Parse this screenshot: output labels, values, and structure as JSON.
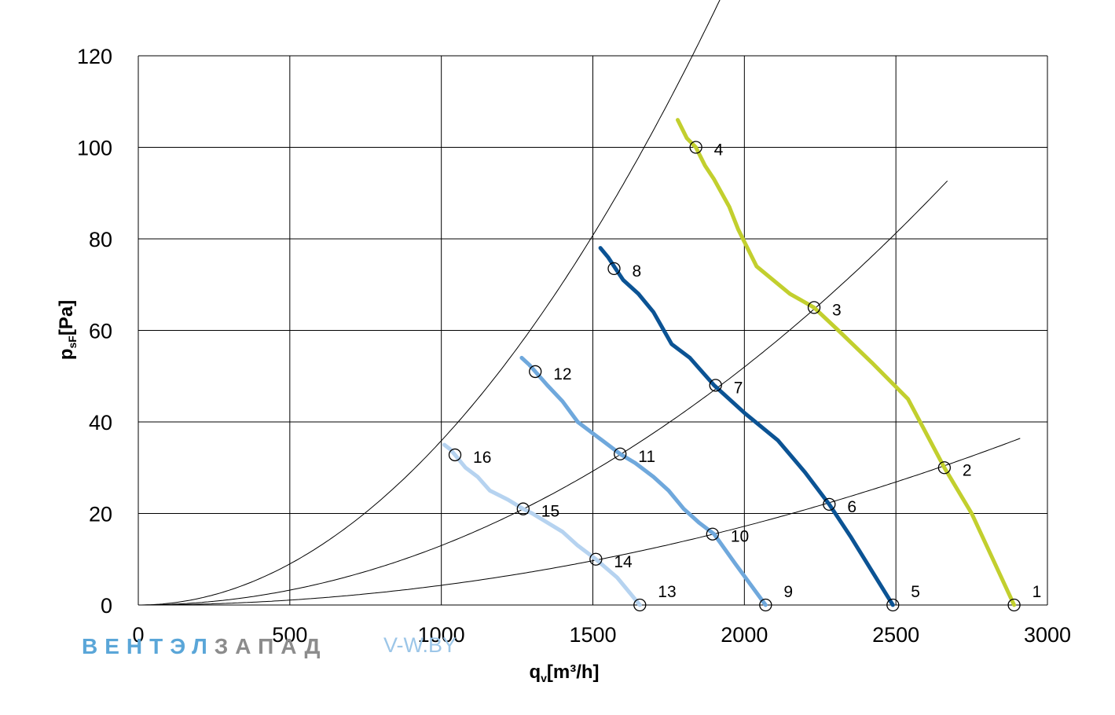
{
  "chart_data": {
    "type": "line",
    "xlabel": "q",
    "xlabel_sub": "v",
    "xlabel_unit": "[m³/h]",
    "ylabel": "p",
    "ylabel_sub": "sF",
    "ylabel_unit": "[Pa]",
    "xlim": [
      0,
      3000
    ],
    "ylim": [
      0,
      120
    ],
    "x_ticks": [
      0,
      500,
      1000,
      1500,
      2000,
      2500,
      3000
    ],
    "y_ticks": [
      0,
      20,
      40,
      60,
      80,
      100,
      120
    ],
    "grid": true,
    "series": [
      {
        "color": "#c2cf2e",
        "x": [
          1780,
          1810,
          1840,
          1870,
          1900,
          1950,
          1980,
          2040,
          2150,
          2230,
          2310,
          2420,
          2540,
          2660,
          2750,
          2890
        ],
        "y": [
          106,
          102,
          100,
          96,
          93,
          87,
          82,
          74,
          68,
          65,
          60,
          53,
          45,
          30,
          20,
          0
        ]
      },
      {
        "color": "#0b5394",
        "x": [
          1525,
          1550,
          1575,
          1600,
          1650,
          1700,
          1760,
          1820,
          1900,
          2000,
          2110,
          2200,
          2280,
          2350,
          2490
        ],
        "y": [
          78,
          76,
          73.5,
          71,
          68,
          64,
          57,
          54,
          48,
          42,
          36,
          29,
          22,
          15,
          0
        ]
      },
      {
        "color": "#6fa8dc",
        "x": [
          1265,
          1290,
          1310,
          1350,
          1400,
          1450,
          1530,
          1590,
          1640,
          1700,
          1750,
          1800,
          1850,
          1900,
          1970,
          2070
        ],
        "y": [
          54,
          52.5,
          51,
          48,
          44.5,
          40,
          36,
          33,
          31,
          28,
          25,
          21,
          18,
          15.5,
          9,
          0
        ]
      },
      {
        "color": "#b6d3f0",
        "x": [
          1010,
          1030,
          1045,
          1080,
          1120,
          1160,
          1220,
          1270,
          1300,
          1350,
          1400,
          1450,
          1510,
          1580,
          1655
        ],
        "y": [
          35,
          34,
          32.8,
          30,
          28,
          25,
          23,
          21,
          20,
          18,
          16,
          13,
          10,
          6,
          0
        ]
      }
    ],
    "system_curves": [
      {
        "k": 3.59e-05,
        "x_max": 2015
      },
      {
        "k": 1.3e-05,
        "x_max": 2670
      },
      {
        "k": 4.3e-06,
        "x_max": 2910
      }
    ],
    "points": [
      {
        "label": "1",
        "x": 2890,
        "y": 0
      },
      {
        "label": "2",
        "x": 2660,
        "y": 30
      },
      {
        "label": "3",
        "x": 2230,
        "y": 65
      },
      {
        "label": "4",
        "x": 1840,
        "y": 100
      },
      {
        "label": "5",
        "x": 2490,
        "y": 0
      },
      {
        "label": "6",
        "x": 2280,
        "y": 22
      },
      {
        "label": "7",
        "x": 1905,
        "y": 48
      },
      {
        "label": "8",
        "x": 1570,
        "y": 73.5
      },
      {
        "label": "9",
        "x": 2070,
        "y": 0
      },
      {
        "label": "10",
        "x": 1895,
        "y": 15.5
      },
      {
        "label": "11",
        "x": 1590,
        "y": 33
      },
      {
        "label": "12",
        "x": 1310,
        "y": 51
      },
      {
        "label": "13",
        "x": 1655,
        "y": 0
      },
      {
        "label": "14",
        "x": 1510,
        "y": 10
      },
      {
        "label": "15",
        "x": 1270,
        "y": 21
      },
      {
        "label": "16",
        "x": 1045,
        "y": 32.8
      }
    ]
  },
  "watermark": {
    "brand_part1": "ВЕНТЭЛ",
    "brand_part2": "ЗАПАД",
    "site": "V-W.BY",
    "color1": "#5aa6d8",
    "color2": "#8c8c8c",
    "color3": "#9cc6e8"
  }
}
